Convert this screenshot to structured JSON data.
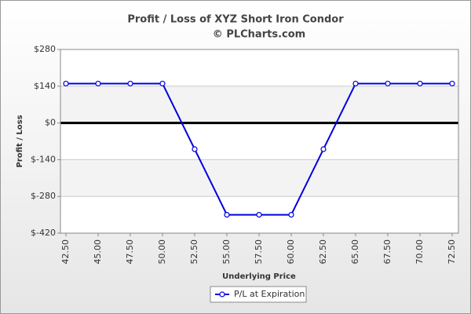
{
  "chart_data": {
    "type": "line",
    "title": "Profit / Loss of XYZ Short Iron Condor",
    "subtitle": "© PLCharts.com",
    "x_label": "Underlying Price",
    "y_label": "Profit / Loss",
    "categories": [
      "42.50",
      "45.00",
      "47.50",
      "50.00",
      "52.50",
      "55.00",
      "57.50",
      "60.00",
      "62.50",
      "65.00",
      "67.50",
      "70.00",
      "72.50"
    ],
    "series": [
      {
        "name": "P/L at Expiration",
        "color": "#0000dd",
        "values": [
          150,
          150,
          150,
          150,
          -100,
          -350,
          -350,
          -350,
          -100,
          150,
          150,
          150,
          150
        ]
      }
    ],
    "ylim": [
      -420,
      280
    ],
    "yticks": [
      {
        "value": 280,
        "label": "$280"
      },
      {
        "value": 140,
        "label": "$140"
      },
      {
        "value": 0,
        "label": "$0"
      },
      {
        "value": -140,
        "label": "$-140"
      },
      {
        "value": -280,
        "label": "$-280"
      },
      {
        "value": -420,
        "label": "$-420"
      }
    ],
    "grid": true
  }
}
